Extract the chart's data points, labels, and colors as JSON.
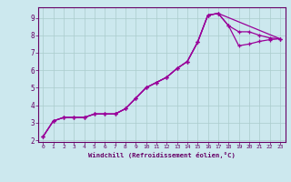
{
  "xlabel": "Windchill (Refroidissement éolien,°C)",
  "bg_color": "#cce8ee",
  "grid_color": "#aacccc",
  "line_color": "#990099",
  "spine_color": "#660066",
  "xlim": [
    -0.5,
    23.5
  ],
  "ylim": [
    1.9,
    9.6
  ],
  "xticks": [
    0,
    1,
    2,
    3,
    4,
    5,
    6,
    7,
    8,
    9,
    10,
    11,
    12,
    13,
    14,
    15,
    16,
    17,
    18,
    19,
    20,
    21,
    22,
    23
  ],
  "yticks": [
    2,
    3,
    4,
    5,
    6,
    7,
    8,
    9
  ],
  "line1_x": [
    0,
    1,
    2,
    3,
    4,
    5,
    6,
    7,
    8,
    9,
    10,
    11,
    12,
    13,
    14,
    15,
    16,
    17,
    18,
    19,
    20,
    21,
    22,
    23
  ],
  "line1_y": [
    2.2,
    3.1,
    3.3,
    3.3,
    3.3,
    3.5,
    3.5,
    3.5,
    3.8,
    4.4,
    5.0,
    5.3,
    5.6,
    6.1,
    6.5,
    7.6,
    9.15,
    9.25,
    8.55,
    8.2,
    8.2,
    8.0,
    7.85,
    7.8
  ],
  "line2_x": [
    0,
    1,
    2,
    3,
    4,
    5,
    6,
    7,
    8,
    9,
    10,
    11,
    12,
    13,
    14,
    15,
    16,
    17,
    18,
    19,
    20,
    21,
    22,
    23
  ],
  "line2_y": [
    2.2,
    3.1,
    3.3,
    3.3,
    3.3,
    3.5,
    3.5,
    3.5,
    3.8,
    4.4,
    5.0,
    5.3,
    5.6,
    6.1,
    6.5,
    7.6,
    9.15,
    9.25,
    8.55,
    7.4,
    7.5,
    7.65,
    7.75,
    7.8
  ],
  "line3_x": [
    0,
    1,
    2,
    3,
    4,
    5,
    6,
    7,
    8,
    9,
    10,
    11,
    12,
    13,
    14,
    15,
    16,
    17,
    23
  ],
  "line3_y": [
    2.2,
    3.1,
    3.3,
    3.3,
    3.3,
    3.5,
    3.5,
    3.5,
    3.8,
    4.4,
    5.0,
    5.3,
    5.6,
    6.1,
    6.5,
    7.6,
    9.15,
    9.25,
    7.8
  ]
}
